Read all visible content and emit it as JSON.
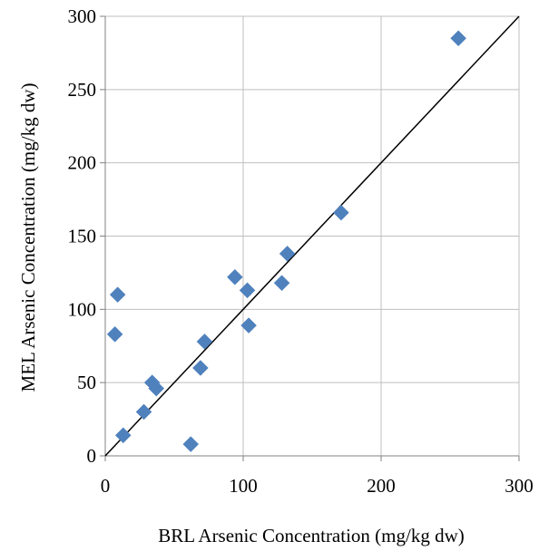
{
  "chart_data": {
    "type": "scatter",
    "title": "",
    "xlabel": "BRL Arsenic  Concentration (mg/kg dw)",
    "ylabel": "MEL Arsenic  Concentration (mg/kg dw)",
    "xlim": [
      0,
      300
    ],
    "ylim": [
      0,
      300
    ],
    "x_ticks": [
      0,
      100,
      200,
      300
    ],
    "y_ticks": [
      0,
      50,
      100,
      150,
      200,
      250,
      300
    ],
    "x_tick_labels": [
      "0",
      "100",
      "200",
      "300"
    ],
    "y_tick_labels": [
      "0",
      "50",
      "100",
      "150",
      "200",
      "250",
      "300"
    ],
    "grid": true,
    "legend": "none",
    "marker": "diamond",
    "colors": {
      "marker": "#4F81BD",
      "line": "#000000",
      "grid": "#BFBFBF",
      "axis": "#808080"
    },
    "series": [
      {
        "points": [
          {
            "x": 256,
            "y": 285
          },
          {
            "x": 171,
            "y": 166
          },
          {
            "x": 132,
            "y": 138
          },
          {
            "x": 128,
            "y": 118
          },
          {
            "x": 94,
            "y": 122
          },
          {
            "x": 103,
            "y": 113
          },
          {
            "x": 104,
            "y": 89
          },
          {
            "x": 72,
            "y": 78
          },
          {
            "x": 69,
            "y": 60
          },
          {
            "x": 62,
            "y": 8
          },
          {
            "x": 9,
            "y": 110
          },
          {
            "x": 7,
            "y": 83
          },
          {
            "x": 34,
            "y": 50
          },
          {
            "x": 37,
            "y": 46
          },
          {
            "x": 28,
            "y": 30
          },
          {
            "x": 13,
            "y": 14
          }
        ]
      }
    ],
    "reference_line": {
      "label": "",
      "from": [
        0,
        0
      ],
      "to": [
        300,
        300
      ]
    }
  }
}
